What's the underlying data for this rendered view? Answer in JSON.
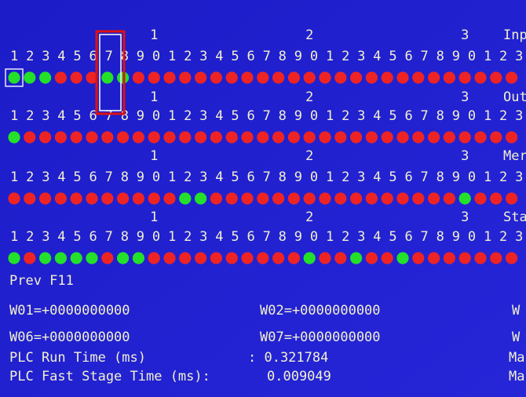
{
  "groups": [
    {
      "tens": [
        "1",
        "2",
        "3"
      ],
      "label": "Inp",
      "digits": "123456789012345678901234567890123",
      "states": [
        1,
        1,
        1,
        0,
        0,
        0,
        1,
        1,
        0,
        0,
        0,
        0,
        0,
        0,
        0,
        0,
        0,
        0,
        0,
        0,
        0,
        0,
        0,
        0,
        0,
        0,
        0,
        0,
        0,
        0,
        0,
        0,
        0
      ]
    },
    {
      "tens": [
        "1",
        "2",
        "3"
      ],
      "label": "Out",
      "digits": "123456789012345678901234567890123",
      "states": [
        1,
        0,
        0,
        0,
        0,
        0,
        0,
        0,
        0,
        0,
        0,
        0,
        0,
        0,
        0,
        0,
        0,
        0,
        0,
        0,
        0,
        0,
        0,
        0,
        0,
        0,
        0,
        0,
        0,
        0,
        0,
        0,
        0
      ]
    },
    {
      "tens": [
        "1",
        "2",
        "3"
      ],
      "label": "Mer",
      "digits": "123456789012345678901234567890123",
      "states": [
        0,
        0,
        0,
        0,
        0,
        0,
        0,
        0,
        0,
        0,
        0,
        1,
        1,
        0,
        0,
        0,
        0,
        0,
        0,
        0,
        0,
        0,
        0,
        0,
        0,
        0,
        0,
        0,
        0,
        1,
        0,
        0,
        0
      ]
    },
    {
      "tens": [
        "1",
        "2",
        "3"
      ],
      "label": "Sta",
      "digits": "123456789012345678901234567890123",
      "states": [
        1,
        0,
        1,
        1,
        1,
        1,
        0,
        1,
        1,
        0,
        0,
        0,
        0,
        0,
        0,
        0,
        0,
        0,
        0,
        1,
        0,
        0,
        1,
        0,
        0,
        1,
        0,
        0,
        0,
        0,
        0,
        0,
        0
      ]
    }
  ],
  "prev": "Prev F11",
  "words": [
    {
      "left": "W01=+0000000000",
      "middle": "W02=+0000000000",
      "right": "W"
    },
    {
      "left": "W06=+0000000000",
      "middle": "W07=+0000000000",
      "right": "W"
    }
  ],
  "plc": [
    {
      "label": "PLC Run Time (ms)",
      "value": ": 0.321784",
      "right": "Ma"
    },
    {
      "label": "PLC Fast Stage Time (ms):",
      "value": "0.009049",
      "right": "Ma"
    }
  ]
}
